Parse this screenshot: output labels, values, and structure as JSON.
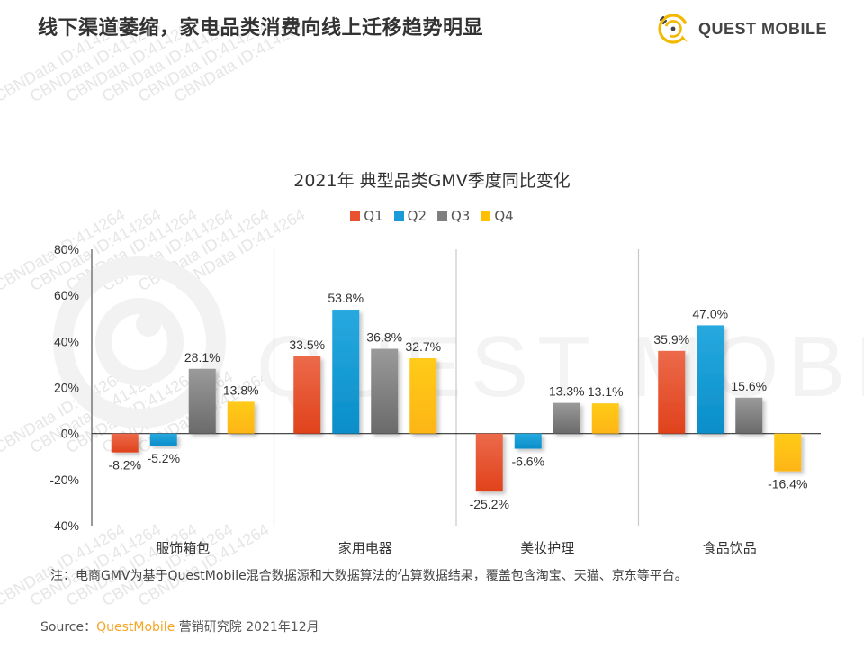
{
  "header": {
    "title": "线下渠道萎缩，家电品类消费向线上迁移趋势明显",
    "logo_text": "QUEST MOBILE",
    "logo_icon": "quest-mobile-logo-icon"
  },
  "watermark_text": "CBNData ID:414264",
  "chart_data": {
    "type": "bar",
    "title": "2021年 典型品类GMV季度同比变化",
    "xlabel": "",
    "ylabel": "",
    "categories": [
      "服饰箱包",
      "家用电器",
      "美妆护理",
      "食品饮品"
    ],
    "series": [
      {
        "name": "Q1",
        "color": "#e8512f",
        "values": [
          -8.2,
          33.5,
          -25.2,
          35.9
        ]
      },
      {
        "name": "Q2",
        "color": "#1a9ad6",
        "values": [
          -5.2,
          53.8,
          -6.6,
          47.0
        ]
      },
      {
        "name": "Q3",
        "color": "#7f7f7f",
        "values": [
          28.1,
          36.8,
          13.3,
          15.6
        ]
      },
      {
        "name": "Q4",
        "color": "#ffc000",
        "values": [
          13.8,
          32.7,
          13.1,
          -16.4
        ]
      }
    ],
    "data_labels": [
      [
        "-8.2%",
        "-5.2%",
        "28.1%",
        "13.8%"
      ],
      [
        "33.5%",
        "53.8%",
        "36.8%",
        "32.7%"
      ],
      [
        "-25.2%",
        "-6.6%",
        "13.3%",
        "13.1%"
      ],
      [
        "35.9%",
        "47.0%",
        "15.6%",
        "-16.4%"
      ]
    ],
    "ylim": [
      -40,
      80
    ],
    "yticks": [
      80,
      60,
      40,
      20,
      0,
      -20,
      -40
    ],
    "ytick_labels": [
      "80%",
      "60%",
      "40%",
      "20%",
      "0%",
      "-20%",
      "-40%"
    ],
    "legend_position": "top-center",
    "grid": false
  },
  "footer": {
    "note": "注：电商GMV为基于QuestMobile混合数据源和大数据算法的估算数据结果，覆盖包含淘宝、天猫、京东等平台。",
    "source_prefix": "Source：",
    "source_brand": "QuestMobile",
    "source_suffix": " 营销研究院 2021年12月"
  }
}
